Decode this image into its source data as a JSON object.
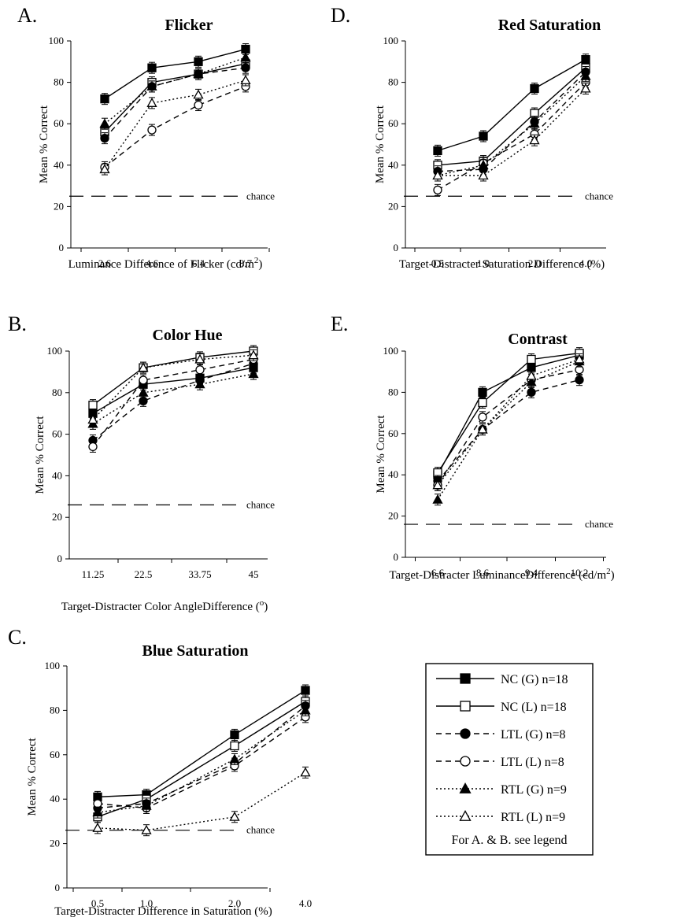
{
  "chart_data": [
    {
      "type": "line",
      "panel": "A.",
      "title": "Flicker",
      "xlabel": "Luminance Difference of Flicker (cd/m",
      "xlabel_sup": "2",
      "xlabel_end": ")",
      "ylabel": "Mean % Correct",
      "categories": [
        "2.6",
        "4.6",
        "6.4",
        "8.7"
      ],
      "ylim": [
        0,
        100
      ],
      "yticks": [
        "0",
        "20",
        "40",
        "60",
        "80",
        "100"
      ],
      "chance_level": 25,
      "chance_label": "chance",
      "series": [
        {
          "key": "nc_g",
          "values": [
            72,
            87,
            90,
            96
          ]
        },
        {
          "key": "nc_l",
          "values": [
            56,
            80,
            84,
            89
          ]
        },
        {
          "key": "ltl_g",
          "values": [
            53,
            78,
            84,
            87
          ]
        },
        {
          "key": "ltl_l",
          "values": [
            39,
            57,
            69,
            78
          ]
        },
        {
          "key": "rtl_g",
          "values": [
            60,
            78,
            84,
            92
          ]
        },
        {
          "key": "rtl_l",
          "values": [
            38,
            70,
            74,
            81
          ]
        }
      ]
    },
    {
      "type": "line",
      "panel": "B.",
      "title": "Color Hue",
      "xlabel": "Target-Distracter Color AngleDifference (",
      "xlabel_sup": "o",
      "xlabel_end": ")",
      "ylabel": "Mean % Correct",
      "categories": [
        "11.25",
        "22.5",
        "33.75",
        "45"
      ],
      "ylim": [
        0,
        100
      ],
      "yticks": [
        "0",
        "20",
        "40",
        "60",
        "80",
        "100"
      ],
      "chance_level": 26,
      "chance_label": "chance",
      "series": [
        {
          "key": "nc_g",
          "values": [
            70,
            84,
            87,
            92
          ]
        },
        {
          "key": "nc_l",
          "values": [
            74,
            92,
            97,
            100
          ]
        },
        {
          "key": "ltl_g",
          "values": [
            57,
            76,
            86,
            94
          ]
        },
        {
          "key": "ltl_l",
          "values": [
            54,
            86,
            91,
            96
          ]
        },
        {
          "key": "rtl_g",
          "values": [
            65,
            80,
            84,
            89
          ]
        },
        {
          "key": "rtl_l",
          "values": [
            67,
            92,
            96,
            98
          ]
        }
      ]
    },
    {
      "type": "line",
      "panel": "C.",
      "title": "Blue Saturation",
      "xlabel": "Target-Distracter Difference in Saturation (%)",
      "xlabel_sup": "",
      "xlabel_end": "",
      "ylabel": "Mean % Correct",
      "categories": [
        "0.5",
        "1.0",
        "2.0",
        "4.0"
      ],
      "ylim": [
        0,
        100
      ],
      "yticks": [
        "0",
        "20",
        "40",
        "60",
        "80",
        "100"
      ],
      "chance_level": 26,
      "chance_label": "chance",
      "series": [
        {
          "key": "nc_g",
          "values": [
            41,
            42,
            69,
            89
          ]
        },
        {
          "key": "nc_l",
          "values": [
            32,
            40,
            64,
            84
          ]
        },
        {
          "key": "ltl_g",
          "values": [
            36,
            38,
            56,
            82
          ]
        },
        {
          "key": "ltl_l",
          "values": [
            38,
            36,
            55,
            77
          ]
        },
        {
          "key": "rtl_g",
          "values": [
            34,
            37,
            58,
            80
          ]
        },
        {
          "key": "rtl_l",
          "values": [
            27,
            26,
            32,
            52
          ]
        }
      ]
    },
    {
      "type": "line",
      "panel": "D.",
      "title": "Red Saturation",
      "xlabel": "Target-Distracter Saturation Difference (%)",
      "xlabel_sup": "",
      "xlabel_end": "",
      "ylabel": "Mean % Correct",
      "categories": [
        "0.5",
        "1.0",
        "2.0",
        "4.0"
      ],
      "ylim": [
        0,
        100
      ],
      "yticks": [
        "0",
        "20",
        "40",
        "60",
        "80",
        "100"
      ],
      "chance_level": 25,
      "chance_label": "chance",
      "series": [
        {
          "key": "nc_g",
          "values": [
            47,
            54,
            77,
            91
          ]
        },
        {
          "key": "nc_l",
          "values": [
            40,
            42,
            65,
            87
          ]
        },
        {
          "key": "ltl_g",
          "values": [
            37,
            38,
            61,
            85
          ]
        },
        {
          "key": "ltl_l",
          "values": [
            28,
            41,
            55,
            80
          ]
        },
        {
          "key": "rtl_g",
          "values": [
            35,
            40,
            60,
            83
          ]
        },
        {
          "key": "rtl_l",
          "values": [
            35,
            35,
            52,
            77
          ]
        }
      ]
    },
    {
      "type": "line",
      "panel": "E.",
      "title": "Contrast",
      "xlabel": "Target-Distracter LuminanceDifference (cd/m",
      "xlabel_sup": "2",
      "xlabel_end": ")",
      "ylabel": "Mean % Correct",
      "categories": [
        "6.6",
        "8.6",
        "9.4",
        "10.2"
      ],
      "ylim": [
        0,
        100
      ],
      "yticks": [
        "0",
        "20",
        "40",
        "60",
        "80",
        "100"
      ],
      "chance_level": 16,
      "chance_label": "chance",
      "series": [
        {
          "key": "nc_g",
          "values": [
            40,
            80,
            92,
            98
          ]
        },
        {
          "key": "nc_l",
          "values": [
            41,
            75,
            96,
            99
          ]
        },
        {
          "key": "ltl_g",
          "values": [
            37,
            62,
            80,
            86
          ]
        },
        {
          "key": "ltl_l",
          "values": [
            35,
            68,
            86,
            91
          ]
        },
        {
          "key": "rtl_g",
          "values": [
            28,
            62,
            85,
            95
          ]
        },
        {
          "key": "rtl_l",
          "values": [
            35,
            62,
            88,
            96
          ]
        }
      ]
    }
  ],
  "legend": {
    "items": [
      {
        "key": "nc_g",
        "label": "NC (G) n=18"
      },
      {
        "key": "nc_l",
        "label": "NC (L) n=18"
      },
      {
        "key": "ltl_g",
        "label": "LTL (G) n=8"
      },
      {
        "key": "ltl_l",
        "label": "LTL (L) n=8"
      },
      {
        "key": "rtl_g",
        "label": "RTL (G) n=9"
      },
      {
        "key": "rtl_l",
        "label": "RTL (L) n=9"
      }
    ],
    "note": "For A. & B. see legend"
  },
  "styles": {
    "nc_g": {
      "marker": "square",
      "filled": true,
      "dash": "solid"
    },
    "nc_l": {
      "marker": "square",
      "filled": false,
      "dash": "solid"
    },
    "ltl_g": {
      "marker": "circle",
      "filled": true,
      "dash": "dashed"
    },
    "ltl_l": {
      "marker": "circle",
      "filled": false,
      "dash": "dashed"
    },
    "rtl_g": {
      "marker": "triangle",
      "filled": true,
      "dash": "dotted"
    },
    "rtl_l": {
      "marker": "triangle",
      "filled": false,
      "dash": "dotted"
    }
  }
}
